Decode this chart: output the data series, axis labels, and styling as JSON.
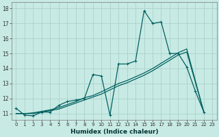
{
  "xlabel": "Humidex (Indice chaleur)",
  "xlim": [
    -0.5,
    23.5
  ],
  "ylim": [
    10.6,
    18.4
  ],
  "xticks": [
    0,
    1,
    2,
    3,
    4,
    5,
    6,
    7,
    8,
    9,
    10,
    11,
    12,
    13,
    14,
    15,
    16,
    17,
    18,
    19,
    20,
    21,
    22,
    23
  ],
  "yticks": [
    11,
    12,
    13,
    14,
    15,
    16,
    17,
    18
  ],
  "bg_color": "#c8eae4",
  "grid_color": "#aed4ce",
  "line_color": "#006060",
  "line1_x": [
    0,
    1,
    2,
    3,
    4,
    5,
    6,
    7,
    8,
    9,
    10,
    11,
    12,
    13,
    14,
    15,
    16,
    17,
    18,
    19,
    20,
    21,
    22
  ],
  "line1_y": [
    11.35,
    10.9,
    10.85,
    11.1,
    11.1,
    11.55,
    11.8,
    11.9,
    12.0,
    13.6,
    13.5,
    10.9,
    14.3,
    14.3,
    14.5,
    17.85,
    17.0,
    17.1,
    15.0,
    15.0,
    14.1,
    12.5,
    11.1
  ],
  "line2_x": [
    0,
    1,
    2,
    3,
    4,
    5,
    6,
    7,
    8,
    9,
    10,
    12,
    13,
    14,
    15,
    16,
    17,
    18,
    19,
    20,
    22
  ],
  "line2_y": [
    11.0,
    11.0,
    11.05,
    11.15,
    11.25,
    11.4,
    11.6,
    11.8,
    12.05,
    12.2,
    12.45,
    13.0,
    13.2,
    13.45,
    13.7,
    14.0,
    14.35,
    14.7,
    15.05,
    15.3,
    11.1
  ],
  "line3_x": [
    0,
    1,
    2,
    3,
    4,
    5,
    6,
    7,
    8,
    9,
    10,
    12,
    13,
    14,
    15,
    16,
    17,
    18,
    19,
    20,
    22
  ],
  "line3_y": [
    11.0,
    11.0,
    11.0,
    11.1,
    11.2,
    11.3,
    11.5,
    11.7,
    11.9,
    12.1,
    12.3,
    12.85,
    13.05,
    13.3,
    13.55,
    13.85,
    14.2,
    14.55,
    14.9,
    15.1,
    11.1
  ]
}
